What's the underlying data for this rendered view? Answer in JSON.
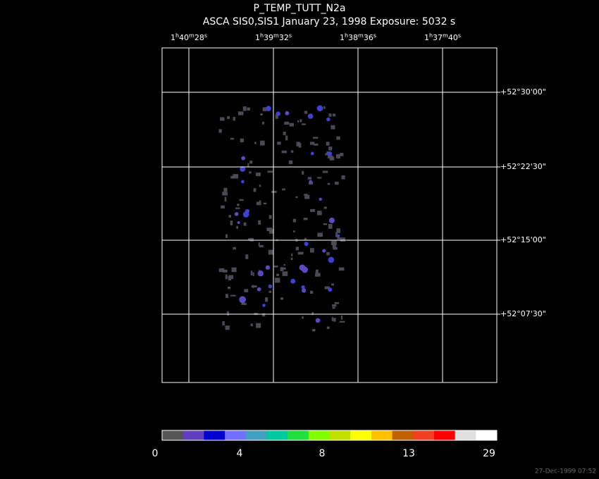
{
  "header": {
    "title": "P_TEMP_TUTT_N2a",
    "subtitle": "ASCA SIS0,SIS1 January 23, 1998 Exposure: 5032 s"
  },
  "ra_labels": [
    [
      "1",
      "h",
      "40",
      "m",
      "28",
      "s"
    ],
    [
      "1",
      "h",
      "39",
      "m",
      "32",
      "s"
    ],
    [
      "1",
      "h",
      "38",
      "m",
      "36",
      "s"
    ],
    [
      "1",
      "h",
      "37",
      "m",
      "40",
      "s"
    ]
  ],
  "dec_labels": [
    "+52°30'00\"",
    "+52°22'30\"",
    "+52°15'00\"",
    "+52°07'30\""
  ],
  "colorbar": {
    "colors": [
      "#555555",
      "#6040c0",
      "#0000d0",
      "#7070ff",
      "#40a0c0",
      "#00c8a0",
      "#20e040",
      "#80ff00",
      "#c0e000",
      "#ffff00",
      "#ffc000",
      "#c06000",
      "#f04020",
      "#ff0000",
      "#e0e0e0",
      "#ffffff"
    ],
    "labels": [
      "0",
      "4",
      "8",
      "13",
      "29"
    ]
  },
  "timestamp": "27-Dec-1999 07:52"
}
